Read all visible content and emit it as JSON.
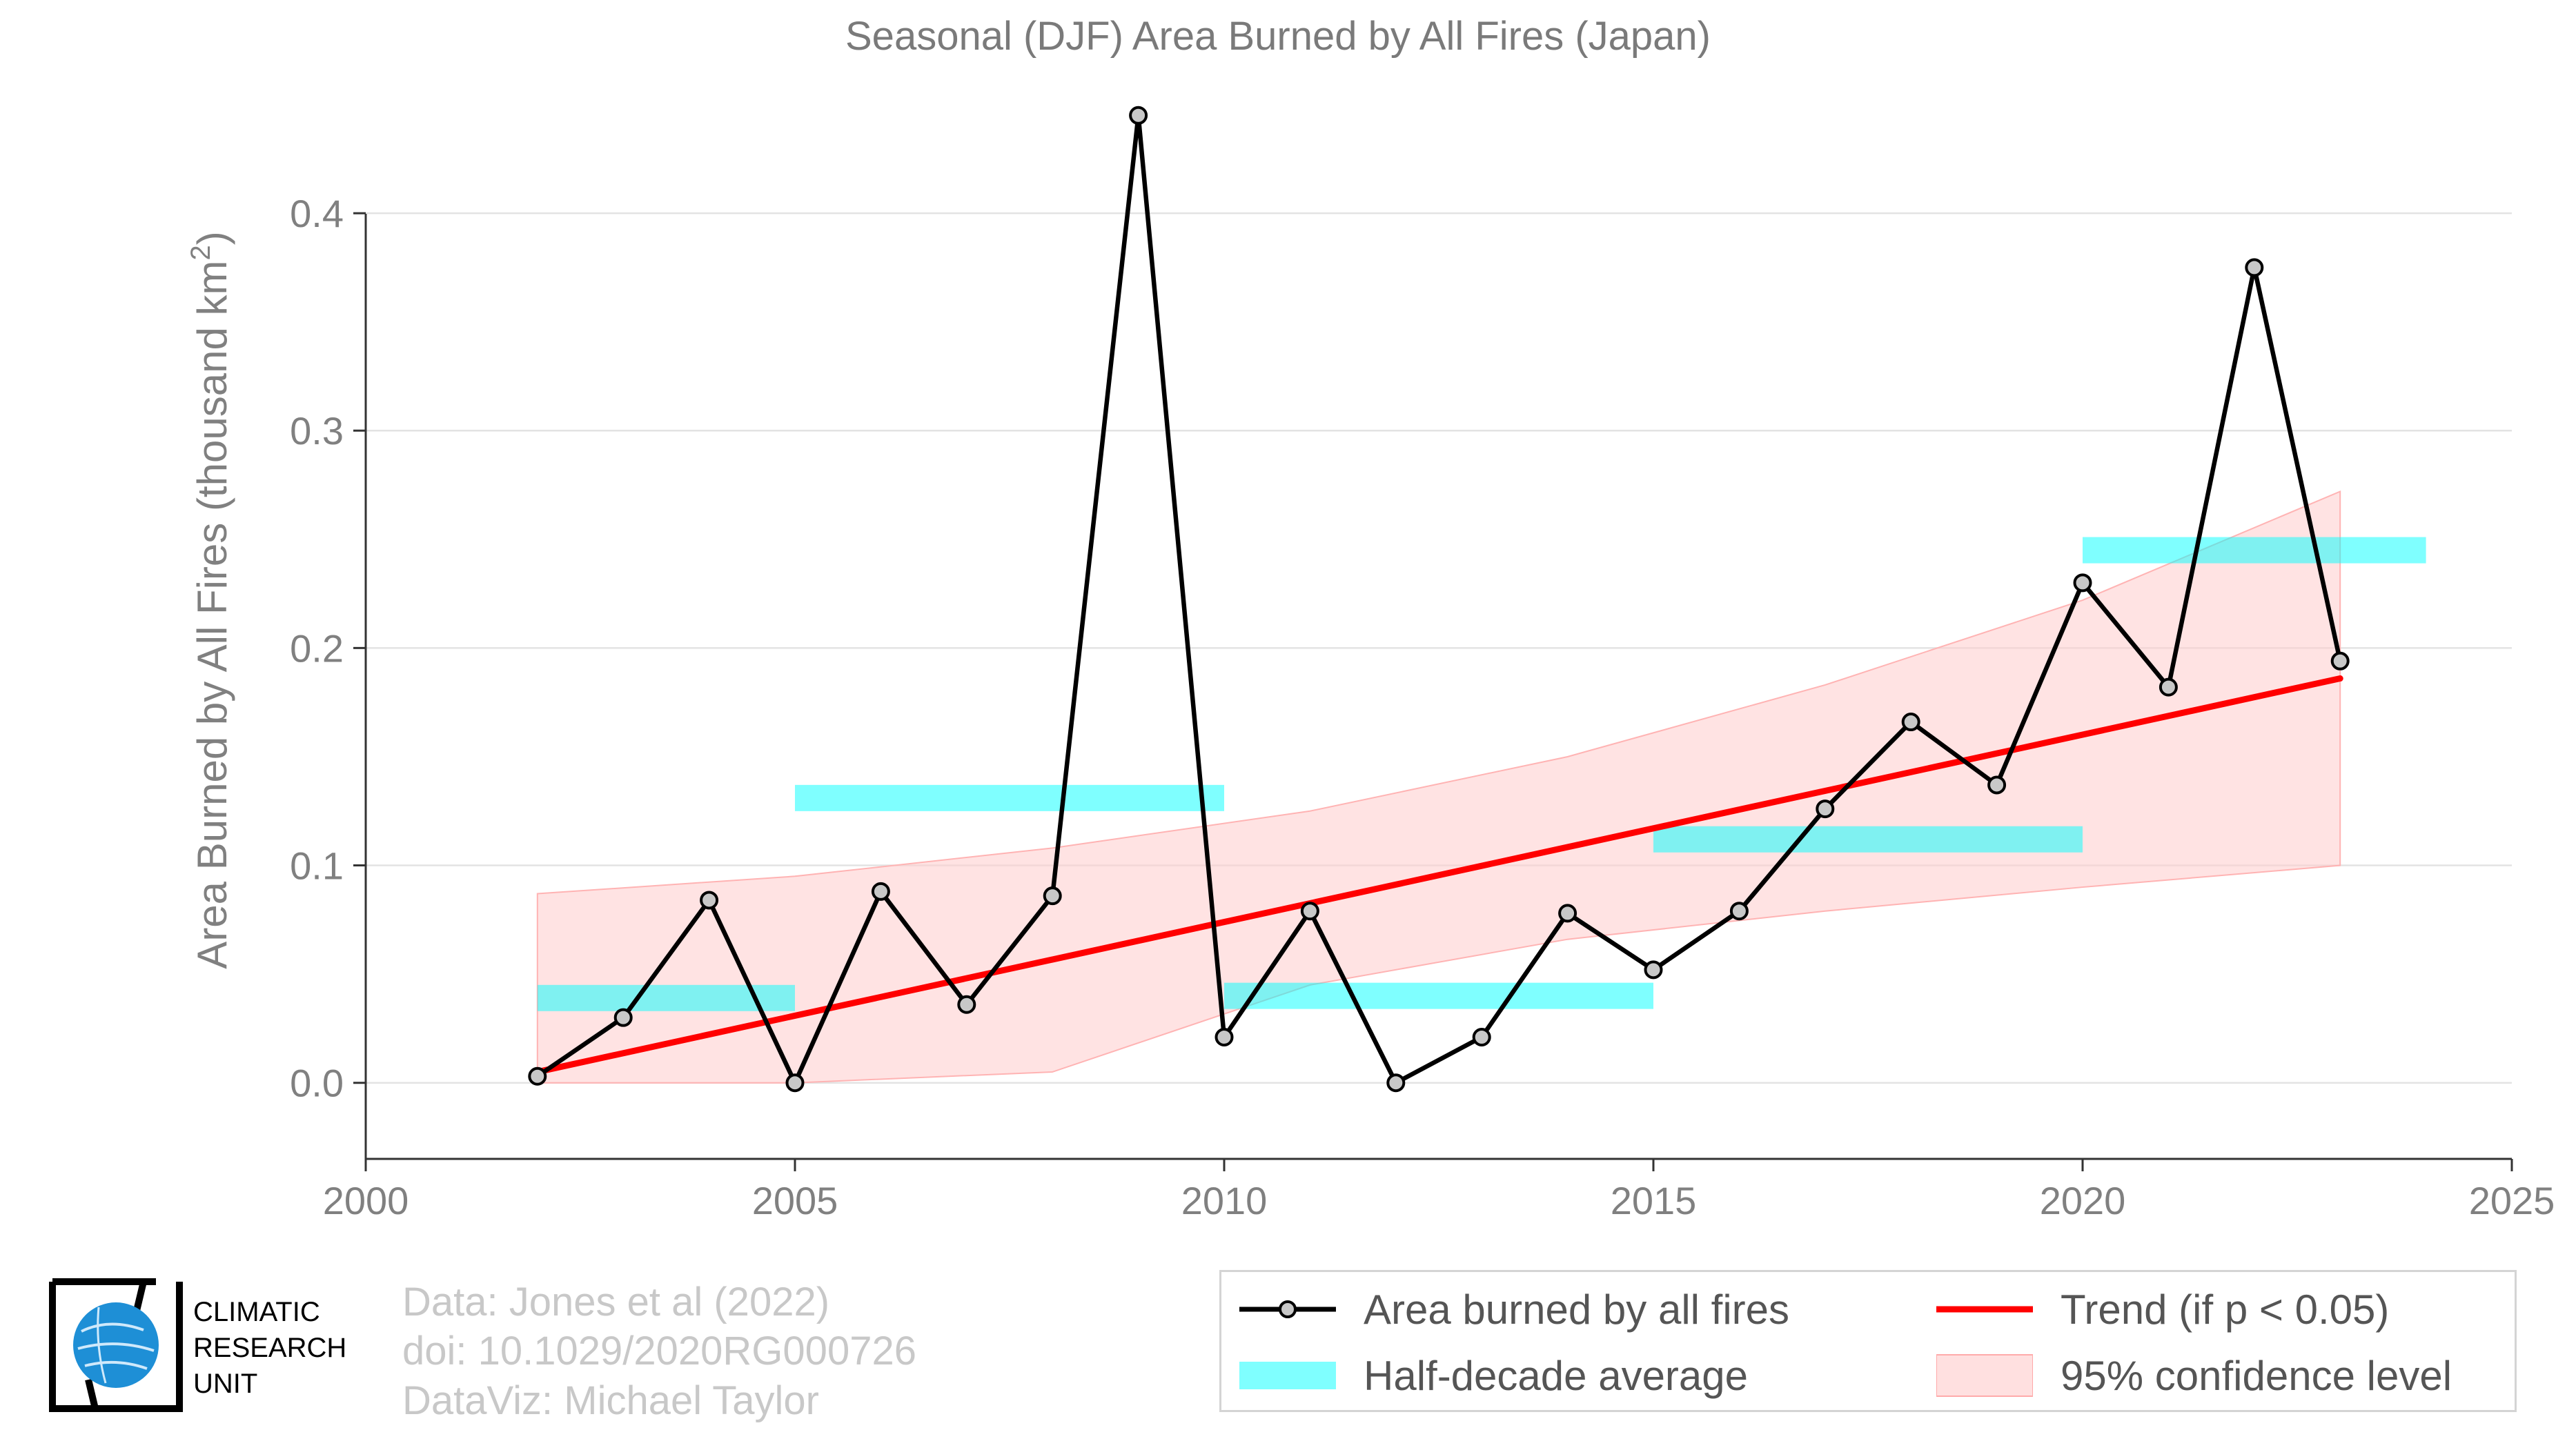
{
  "chart_data": {
    "type": "line",
    "title": "Seasonal (DJF) Area Burned by All Fires (Japan)",
    "xlabel": "",
    "ylabel": "Area Burned by All Fires (thousand km",
    "ylabel_sup": "2",
    "ylabel_end": ")",
    "xlim": [
      2000,
      2025
    ],
    "ylim": [
      -0.035,
      0.46
    ],
    "xticks": [
      2000,
      2005,
      2010,
      2015,
      2020,
      2025
    ],
    "yticks": [
      0.0,
      0.1,
      0.2,
      0.3,
      0.4
    ],
    "ytick_labels": [
      "0.0",
      "0.1",
      "0.2",
      "0.3",
      "0.4"
    ],
    "grid": "horizontal",
    "legend_position": "bottom-right",
    "series": [
      {
        "name": "Area burned by all fires",
        "type": "line-markers",
        "color": "#000000",
        "x": [
          2002,
          2003,
          2004,
          2005,
          2006,
          2007,
          2008,
          2009,
          2010,
          2011,
          2012,
          2013,
          2014,
          2015,
          2016,
          2017,
          2018,
          2019,
          2020,
          2021,
          2022,
          2023
        ],
        "values": [
          0.003,
          0.03,
          0.084,
          0.0,
          0.088,
          0.036,
          0.086,
          0.445,
          0.021,
          0.079,
          0.0,
          0.021,
          0.078,
          0.052,
          0.079,
          0.126,
          0.166,
          0.137,
          0.23,
          0.182,
          0.375,
          0.194
        ]
      },
      {
        "name": "Half-decade average",
        "type": "segments",
        "color": "#00ffff",
        "segments": [
          {
            "x0": 2002,
            "x1": 2005,
            "value": 0.039
          },
          {
            "x0": 2005,
            "x1": 2010,
            "value": 0.131
          },
          {
            "x0": 2010,
            "x1": 2015,
            "value": 0.04
          },
          {
            "x0": 2015,
            "x1": 2020,
            "value": 0.112
          },
          {
            "x0": 2020,
            "x1": 2024,
            "value": 0.245
          }
        ]
      },
      {
        "name": "Trend (if p < 0.05)",
        "type": "trend",
        "color": "#ff0000",
        "x": [
          2002,
          2023
        ],
        "values": [
          0.005,
          0.186
        ]
      },
      {
        "name": "95% confidence level",
        "type": "band",
        "color": "#ffcccc",
        "x": [
          2002,
          2005,
          2008,
          2011,
          2014,
          2017,
          2020,
          2023
        ],
        "lower": [
          0.0,
          0.0,
          0.005,
          0.045,
          0.066,
          0.079,
          0.09,
          0.1
        ],
        "upper": [
          0.087,
          0.095,
          0.108,
          0.125,
          0.15,
          0.183,
          0.222,
          0.272
        ]
      }
    ]
  },
  "credits": {
    "line1": "Data: Jones et al (2022)",
    "line2": "doi: 10.1029/2020RG000726",
    "line3": "DataViz: Michael Taylor"
  },
  "logo": {
    "line1": "CLIMATIC",
    "line2": "RESEARCH",
    "line3": "UNIT"
  }
}
